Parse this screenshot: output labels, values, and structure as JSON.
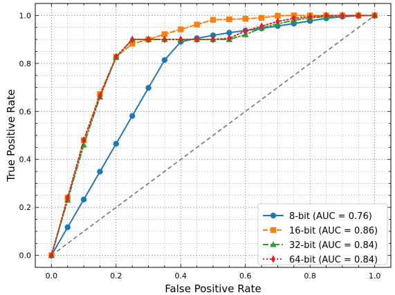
{
  "chart_data": {
    "type": "line",
    "title": "",
    "xlabel": "False Positive Rate",
    "ylabel": "True Positive Rate",
    "xlim": [
      -0.05,
      1.05
    ],
    "ylim": [
      -0.05,
      1.05
    ],
    "x_ticks": [
      "0.0",
      "0.2",
      "0.4",
      "0.6",
      "0.8",
      "1.0"
    ],
    "y_ticks": [
      "0.0",
      "0.2",
      "0.4",
      "0.6",
      "0.8",
      "1.0"
    ],
    "grid": "on (major and minor, dotted)",
    "legend_position": "lower-right",
    "series": [
      {
        "name": "8-bit (AUC = 0.76)",
        "color": "#1f77b4",
        "marker": "circle",
        "line_style": "solid",
        "x": [
          0.0,
          0.05,
          0.1,
          0.15,
          0.2,
          0.25,
          0.3,
          0.35,
          0.4,
          0.45,
          0.5,
          0.55,
          0.6,
          0.65,
          0.7,
          0.75,
          0.8,
          0.85,
          0.9,
          0.95,
          1.0
        ],
        "y": [
          0.0,
          0.117,
          0.233,
          0.349,
          0.465,
          0.581,
          0.698,
          0.814,
          0.89,
          0.905,
          0.917,
          0.928,
          0.937,
          0.946,
          0.956,
          0.966,
          0.977,
          0.988,
          0.995,
          0.999,
          1.0
        ]
      },
      {
        "name": "16-bit (AUC = 0.86)",
        "color": "#ff7f0e",
        "marker": "square",
        "line_style": "dashed",
        "x": [
          0.0,
          0.05,
          0.1,
          0.15,
          0.2,
          0.25,
          0.3,
          0.35,
          0.4,
          0.45,
          0.5,
          0.55,
          0.6,
          0.65,
          0.7,
          0.75,
          0.8,
          0.85,
          0.9,
          0.95,
          1.0
        ],
        "y": [
          0.0,
          0.24,
          0.48,
          0.672,
          0.827,
          0.882,
          0.9,
          0.922,
          0.942,
          0.962,
          0.982,
          0.984,
          0.986,
          0.99,
          0.999,
          1.0,
          1.0,
          1.0,
          1.0,
          1.0,
          1.0
        ]
      },
      {
        "name": "32-bit (AUC = 0.84)",
        "color": "#2ca02c",
        "marker": "triangle",
        "line_style": "dashdot",
        "x": [
          0.0,
          0.05,
          0.1,
          0.15,
          0.2,
          0.25,
          0.3,
          0.35,
          0.4,
          0.45,
          0.5,
          0.55,
          0.6,
          0.65,
          0.7,
          0.75,
          0.8,
          0.85,
          0.9,
          0.95,
          1.0
        ],
        "y": [
          0.0,
          0.23,
          0.46,
          0.66,
          0.825,
          0.9,
          0.9,
          0.9,
          0.9,
          0.9,
          0.9,
          0.9,
          0.92,
          0.948,
          0.965,
          0.98,
          0.99,
          0.995,
          0.999,
          1.0,
          1.0
        ]
      },
      {
        "name": "64-bit (AUC = 0.84)",
        "color": "#d62728",
        "marker": "diamond",
        "line_style": "dotted",
        "x": [
          0.0,
          0.05,
          0.1,
          0.15,
          0.2,
          0.25,
          0.3,
          0.35,
          0.4,
          0.45,
          0.5,
          0.55,
          0.6,
          0.65,
          0.7,
          0.75,
          0.8,
          0.85,
          0.9,
          0.95,
          1.0
        ],
        "y": [
          0.0,
          0.24,
          0.48,
          0.665,
          0.828,
          0.9,
          0.9,
          0.9,
          0.9,
          0.9,
          0.9,
          0.905,
          0.935,
          0.955,
          0.975,
          0.988,
          0.995,
          1.0,
          1.0,
          1.0,
          1.0
        ]
      }
    ],
    "reference_line": {
      "color": "#808080",
      "line_style": "dashed",
      "x": [
        0.0,
        1.0
      ],
      "y": [
        0.0,
        1.0
      ]
    }
  }
}
